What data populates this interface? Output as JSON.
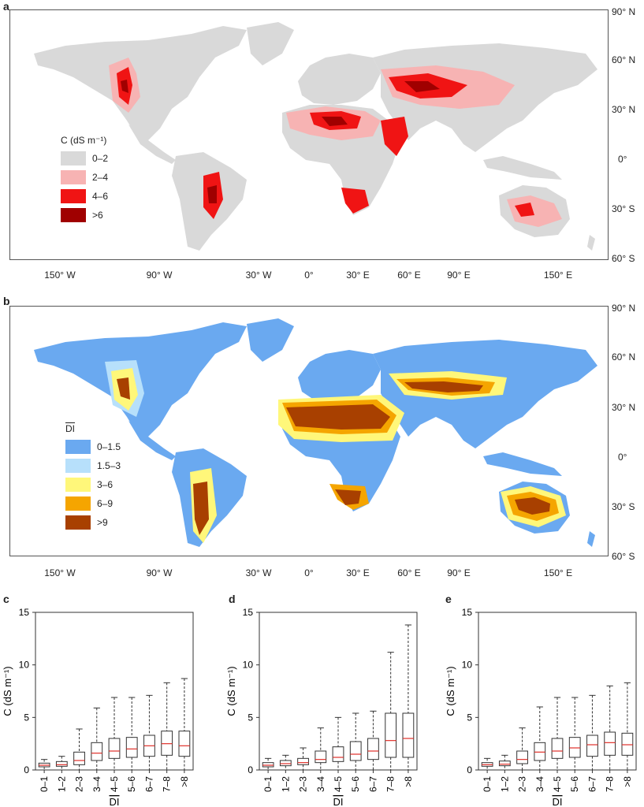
{
  "panels": {
    "a": "a",
    "b": "b",
    "c": "c",
    "d": "d",
    "e": "e"
  },
  "lat_labels": [
    "90° N",
    "60° N",
    "30° N",
    "0°",
    "30° S",
    "60° S"
  ],
  "lon_labels": [
    "150° W",
    "90° W",
    "30° W",
    "0°",
    "30° E",
    "60° E",
    "90° E",
    "150° E"
  ],
  "map_a": {
    "legend_title": "C (dS m⁻¹)",
    "legend": [
      {
        "label": "0–2",
        "color": "#d9d9d9"
      },
      {
        "label": "2–4",
        "color": "#f7b3b3"
      },
      {
        "label": "4–6",
        "color": "#f01414"
      },
      {
        "label": ">6",
        "color": "#a00000"
      }
    ]
  },
  "map_b": {
    "legend_title": "DI",
    "legend": [
      {
        "label": "0–1.5",
        "color": "#6aa9f0"
      },
      {
        "label": "1.5–3",
        "color": "#b7e0fb"
      },
      {
        "label": "3–6",
        "color": "#fff77a"
      },
      {
        "label": "6–9",
        "color": "#f5a500"
      },
      {
        "label": ">9",
        "color": "#a84000"
      }
    ]
  },
  "chart_data": [
    {
      "type": "box",
      "panel": "c",
      "ylabel": "C (dS m⁻¹)",
      "xlabel": "DI",
      "ylim": [
        0,
        15
      ],
      "yticks": [
        0,
        5,
        10,
        15
      ],
      "categories": [
        "0–1",
        "1–2",
        "2–3",
        "3–4",
        "4–5",
        "5–6",
        "6–7",
        "7–8",
        ">8"
      ],
      "boxes": [
        {
          "whisker_low": 0.0,
          "q1": 0.3,
          "median": 0.45,
          "q3": 0.65,
          "whisker_high": 1.0
        },
        {
          "whisker_low": 0.0,
          "q1": 0.35,
          "median": 0.5,
          "q3": 0.8,
          "whisker_high": 1.3
        },
        {
          "whisker_low": 0.0,
          "q1": 0.5,
          "median": 0.9,
          "q3": 1.7,
          "whisker_high": 3.9
        },
        {
          "whisker_low": 0.0,
          "q1": 0.9,
          "median": 1.6,
          "q3": 2.6,
          "whisker_high": 5.9
        },
        {
          "whisker_low": 0.0,
          "q1": 1.1,
          "median": 1.8,
          "q3": 3.0,
          "whisker_high": 6.9
        },
        {
          "whisker_low": 0.0,
          "q1": 1.2,
          "median": 2.0,
          "q3": 3.1,
          "whisker_high": 6.9
        },
        {
          "whisker_low": 0.0,
          "q1": 1.3,
          "median": 2.3,
          "q3": 3.3,
          "whisker_high": 7.1
        },
        {
          "whisker_low": 0.0,
          "q1": 1.4,
          "median": 2.5,
          "q3": 3.7,
          "whisker_high": 8.3
        },
        {
          "whisker_low": 0.0,
          "q1": 1.3,
          "median": 2.3,
          "q3": 3.7,
          "whisker_high": 8.7
        }
      ]
    },
    {
      "type": "box",
      "panel": "d",
      "ylabel": "C (dS m⁻¹)",
      "xlabel": "DI",
      "ylim": [
        0,
        15
      ],
      "yticks": [
        0,
        5,
        10,
        15
      ],
      "categories": [
        "0–1",
        "1–2",
        "2–3",
        "3–4",
        "4–5",
        "5–6",
        "6–7",
        "7–8",
        ">8"
      ],
      "boxes": [
        {
          "whisker_low": 0.0,
          "q1": 0.3,
          "median": 0.45,
          "q3": 0.7,
          "whisker_high": 1.1
        },
        {
          "whisker_low": 0.0,
          "q1": 0.4,
          "median": 0.6,
          "q3": 0.9,
          "whisker_high": 1.4
        },
        {
          "whisker_low": 0.0,
          "q1": 0.5,
          "median": 0.7,
          "q3": 1.1,
          "whisker_high": 2.1
        },
        {
          "whisker_low": 0.0,
          "q1": 0.7,
          "median": 1.0,
          "q3": 1.8,
          "whisker_high": 4.0
        },
        {
          "whisker_low": 0.0,
          "q1": 0.8,
          "median": 1.2,
          "q3": 2.2,
          "whisker_high": 5.0
        },
        {
          "whisker_low": 0.0,
          "q1": 0.9,
          "median": 1.5,
          "q3": 2.7,
          "whisker_high": 5.4
        },
        {
          "whisker_low": 0.0,
          "q1": 1.0,
          "median": 1.8,
          "q3": 3.0,
          "whisker_high": 5.6
        },
        {
          "whisker_low": 0.0,
          "q1": 1.2,
          "median": 2.8,
          "q3": 5.4,
          "whisker_high": 11.2
        },
        {
          "whisker_low": 0.0,
          "q1": 1.2,
          "median": 3.0,
          "q3": 5.4,
          "whisker_high": 13.8
        }
      ]
    },
    {
      "type": "box",
      "panel": "e",
      "ylabel": "C (dS m⁻¹)",
      "xlabel": "DI",
      "ylim": [
        0,
        15
      ],
      "yticks": [
        0,
        5,
        10,
        15
      ],
      "categories": [
        "0–1",
        "1–2",
        "2–3",
        "3–4",
        "4–5",
        "5–6",
        "6–7",
        "7–8",
        ">8"
      ],
      "boxes": [
        {
          "whisker_low": 0.0,
          "q1": 0.35,
          "median": 0.5,
          "q3": 0.7,
          "whisker_high": 1.1
        },
        {
          "whisker_low": 0.0,
          "q1": 0.4,
          "median": 0.55,
          "q3": 0.85,
          "whisker_high": 1.4
        },
        {
          "whisker_low": 0.0,
          "q1": 0.6,
          "median": 1.0,
          "q3": 1.8,
          "whisker_high": 4.0
        },
        {
          "whisker_low": 0.0,
          "q1": 0.9,
          "median": 1.7,
          "q3": 2.6,
          "whisker_high": 6.0
        },
        {
          "whisker_low": 0.0,
          "q1": 1.1,
          "median": 1.8,
          "q3": 3.0,
          "whisker_high": 6.9
        },
        {
          "whisker_low": 0.0,
          "q1": 1.2,
          "median": 2.1,
          "q3": 3.1,
          "whisker_high": 6.9
        },
        {
          "whisker_low": 0.0,
          "q1": 1.3,
          "median": 2.4,
          "q3": 3.3,
          "whisker_high": 7.1
        },
        {
          "whisker_low": 0.0,
          "q1": 1.4,
          "median": 2.6,
          "q3": 3.6,
          "whisker_high": 8.0
        },
        {
          "whisker_low": 0.0,
          "q1": 1.4,
          "median": 2.4,
          "q3": 3.5,
          "whisker_high": 8.3
        }
      ]
    }
  ]
}
